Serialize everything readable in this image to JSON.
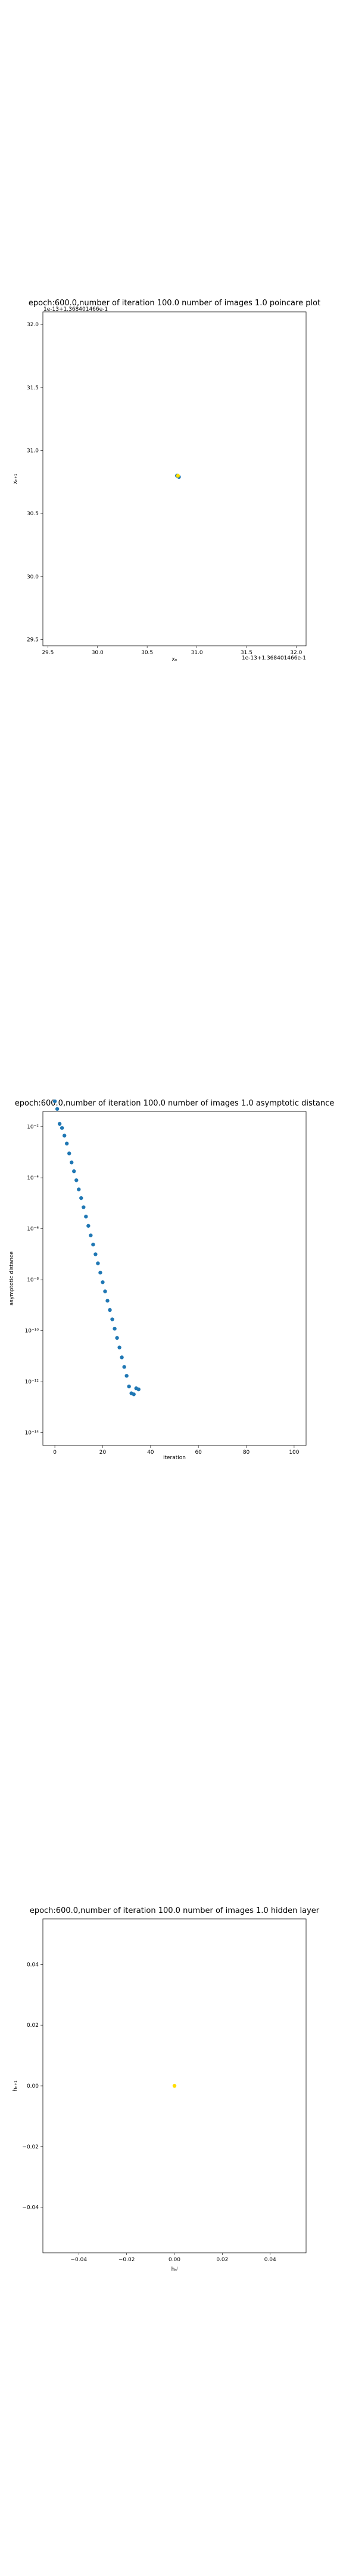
{
  "chart_data": [
    {
      "type": "scatter",
      "title": "epoch:600.0,number of iteration 100.0 number of images 1.0 poincare plot",
      "overlap_text": "1e-13+1.368401466e-1",
      "xlabel": "xₙ",
      "ylabel": "xₙ₊₁",
      "offset_label": "1e-13+1.368401466e-1",
      "xlim": [
        29.45,
        32.1
      ],
      "ylim": [
        29.45,
        32.1
      ],
      "xticks": [
        "29.5",
        "30.0",
        "30.5",
        "31.0",
        "31.5",
        "32.0"
      ],
      "yticks": [
        "29.5",
        "30.0",
        "30.5",
        "31.0",
        "31.5",
        "32.0"
      ],
      "grid": false,
      "series": [
        {
          "x": [
            30.8,
            30.82
          ],
          "y": [
            30.8,
            30.79
          ],
          "color": "#1f77b4"
        },
        {
          "x": [
            30.81
          ],
          "y": [
            30.8
          ],
          "color": "#ffdd00"
        }
      ]
    },
    {
      "type": "scatter",
      "title": "epoch:600.0,number of iteration 100.0  number of images 1.0 asymptotic distance",
      "xlabel": "iteration",
      "ylabel": "asymptotic distance",
      "xlim": [
        -5,
        105
      ],
      "ylim_log10": [
        -14.5,
        -1.4
      ],
      "yscale": "log",
      "xticks": [
        "0",
        "20",
        "40",
        "60",
        "80",
        "100"
      ],
      "yticks": [
        "10⁻²",
        "10⁻⁴",
        "10⁻⁶",
        "10⁻⁸",
        "10⁻¹⁰",
        "10⁻¹²",
        "10⁻¹⁴"
      ],
      "color": "#1f77b4",
      "grid": false,
      "x": [
        0,
        1,
        2,
        3,
        4,
        5,
        6,
        7,
        8,
        9,
        10,
        11,
        12,
        13,
        14,
        15,
        16,
        17,
        18,
        19,
        20,
        21,
        22,
        23,
        24,
        25,
        26,
        27,
        28,
        29,
        30,
        31,
        32,
        33,
        34,
        35
      ],
      "y": [
        0.1,
        0.05,
        0.013,
        0.009,
        0.0045,
        0.0022,
        0.0009,
        0.0004,
        0.00018,
        8e-05,
        3.5e-05,
        1.6e-05,
        7e-06,
        3e-06,
        1.3e-06,
        5.5e-07,
        2.4e-07,
        1e-07,
        4.4e-08,
        1.9e-08,
        8e-09,
        3.5e-09,
        1.5e-09,
        6.5e-10,
        2.8e-10,
        1.2e-10,
        5.2e-11,
        2.2e-11,
        9e-12,
        3.8e-12,
        1.7e-12,
        6.5e-13,
        3.5e-13,
        3.2e-13,
        5.5e-13,
        5e-13
      ]
    },
    {
      "type": "scatter",
      "title": "epoch:600.0,number of iteration 100.0  number of images 1.0 hidden layer",
      "xlabel": "hₙʲ",
      "ylabel": "hₙ₊₁",
      "xlim": [
        -0.055,
        0.055
      ],
      "ylim": [
        -0.055,
        0.055
      ],
      "xticks": [
        "−0.04",
        "−0.02",
        "0.00",
        "0.02",
        "0.04"
      ],
      "yticks": [
        "0.04",
        "0.02",
        "0.00",
        "−0.02",
        "−0.04"
      ],
      "grid": false,
      "series": [
        {
          "x": [
            0.0
          ],
          "y": [
            0.0
          ],
          "color": "#ffdd00"
        }
      ]
    }
  ]
}
